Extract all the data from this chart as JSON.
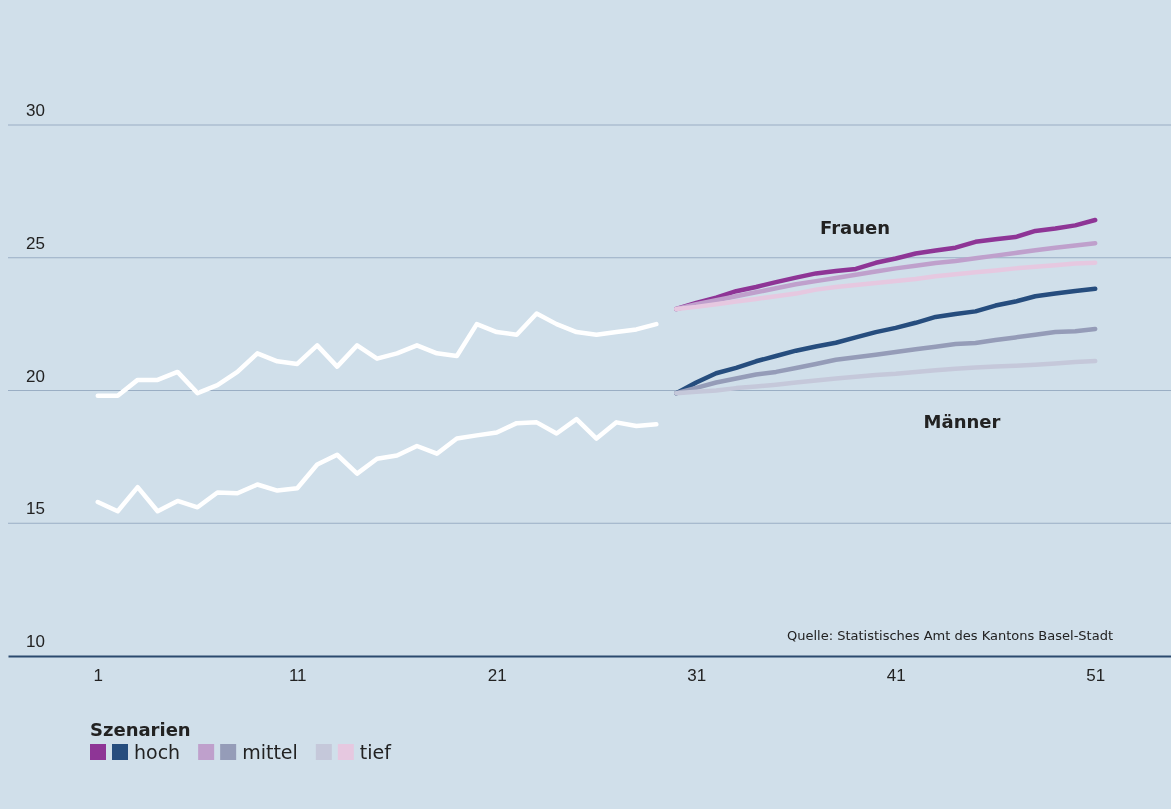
{
  "chart_data": {
    "type": "line",
    "legend_title": "Szenarien",
    "legend": "bottom left",
    "grid": "y",
    "line_style": "solid",
    "marker": "none",
    "xlim": [
      -3.5,
      54.8
    ],
    "xticks": [
      1,
      11,
      21,
      31,
      41,
      51
    ],
    "ylim": [
      10,
      30
    ],
    "yticks": [
      10,
      15,
      20,
      25,
      30
    ],
    "annotations": [
      "Frauen",
      "Männer",
      "Quelle: Statistisches Amt des Kantons Basel-Stadt"
    ],
    "series": [
      {
        "color": "#ffffff",
        "x": [
          1,
          2,
          3,
          4,
          5,
          6,
          7,
          8,
          9,
          10,
          11,
          12,
          13,
          14,
          15,
          16,
          17,
          18,
          19,
          20,
          21,
          22,
          23,
          24,
          25,
          26,
          27,
          28,
          29
        ],
        "values": [
          19.8,
          19.8,
          20.4,
          20.4,
          20.7,
          19.9,
          20.2,
          20.7,
          21.4,
          21.1,
          21.0,
          21.7,
          20.9,
          21.7,
          21.2,
          21.4,
          21.7,
          21.4,
          21.3,
          22.5,
          22.2,
          22.1,
          22.9,
          22.5,
          22.2,
          22.1,
          22.2,
          22.3,
          22.5
        ]
      },
      {
        "color": "#ffffff",
        "x": [
          1,
          2,
          3,
          4,
          5,
          6,
          7,
          8,
          9,
          10,
          11,
          12,
          13,
          14,
          15,
          16,
          17,
          18,
          19,
          20,
          21,
          22,
          23,
          24,
          25,
          26,
          27,
          28,
          29
        ],
        "values": [
          15.8,
          15.45,
          16.36,
          15.45,
          15.84,
          15.6,
          16.16,
          16.13,
          16.46,
          16.23,
          16.32,
          17.21,
          17.58,
          16.87,
          17.43,
          17.55,
          17.91,
          17.62,
          18.19,
          18.31,
          18.42,
          18.77,
          18.8,
          18.38,
          18.92,
          18.19,
          18.8,
          18.66,
          18.73
        ]
      },
      {
        "color": "#8e3596",
        "x": [
          30,
          31,
          32,
          33,
          34,
          35,
          36,
          37,
          38,
          39,
          40,
          41,
          42,
          43,
          44,
          45,
          46,
          47,
          48,
          49,
          50,
          51
        ],
        "values": [
          23.07,
          23.3,
          23.5,
          23.74,
          23.9,
          24.08,
          24.25,
          24.41,
          24.5,
          24.58,
          24.81,
          24.97,
          25.16,
          25.27,
          25.38,
          25.6,
          25.7,
          25.78,
          26.01,
          26.1,
          26.22,
          26.42
        ]
      },
      {
        "name": "hoch",
        "color": "#264d7e",
        "x": [
          30,
          31,
          32,
          33,
          34,
          35,
          36,
          37,
          38,
          39,
          40,
          41,
          42,
          43,
          44,
          45,
          46,
          47,
          48,
          49,
          50,
          51
        ],
        "values": [
          19.9,
          20.3,
          20.65,
          20.85,
          21.1,
          21.3,
          21.5,
          21.66,
          21.8,
          22.0,
          22.2,
          22.36,
          22.55,
          22.77,
          22.88,
          22.98,
          23.2,
          23.35,
          23.55,
          23.65,
          23.75,
          23.83
        ]
      },
      {
        "color": "#bfa0cc",
        "x": [
          30,
          31,
          32,
          33,
          34,
          35,
          36,
          37,
          38,
          39,
          40,
          41,
          42,
          43,
          44,
          45,
          46,
          47,
          48,
          49,
          50,
          51
        ],
        "values": [
          23.07,
          23.25,
          23.4,
          23.55,
          23.7,
          23.85,
          24.0,
          24.12,
          24.24,
          24.36,
          24.48,
          24.6,
          24.7,
          24.8,
          24.88,
          24.98,
          25.08,
          25.18,
          25.28,
          25.38,
          25.46,
          25.55
        ]
      },
      {
        "name": "mittel",
        "color": "#959cb8",
        "x": [
          30,
          31,
          32,
          33,
          34,
          35,
          36,
          37,
          38,
          39,
          40,
          41,
          42,
          43,
          44,
          45,
          46,
          47,
          48,
          49,
          50,
          51
        ],
        "values": [
          19.9,
          20.1,
          20.3,
          20.45,
          20.6,
          20.7,
          20.85,
          21.0,
          21.16,
          21.25,
          21.35,
          21.45,
          21.55,
          21.65,
          21.75,
          21.79,
          21.9,
          22.0,
          22.1,
          22.2,
          22.23,
          22.32
        ]
      },
      {
        "color": "#c5c8da",
        "x": [
          30,
          31,
          32,
          33,
          34,
          35,
          36,
          37,
          38,
          39,
          40,
          41,
          42,
          43,
          44,
          45,
          46,
          47,
          48,
          49,
          50,
          51
        ],
        "values": [
          19.9,
          19.95,
          20.0,
          20.09,
          20.15,
          20.22,
          20.3,
          20.38,
          20.45,
          20.52,
          20.58,
          20.63,
          20.7,
          20.76,
          20.82,
          20.87,
          20.9,
          20.93,
          20.97,
          21.02,
          21.07,
          21.11
        ]
      },
      {
        "name": "tief",
        "color": "#e6c8e0",
        "x": [
          30,
          31,
          32,
          33,
          34,
          35,
          36,
          37,
          38,
          39,
          40,
          41,
          42,
          43,
          44,
          45,
          46,
          47,
          48,
          49,
          50,
          51
        ],
        "values": [
          23.07,
          23.15,
          23.25,
          23.35,
          23.45,
          23.55,
          23.65,
          23.8,
          23.9,
          23.97,
          24.05,
          24.12,
          24.2,
          24.3,
          24.38,
          24.45,
          24.52,
          24.6,
          24.66,
          24.72,
          24.78,
          24.81
        ]
      }
    ]
  }
}
